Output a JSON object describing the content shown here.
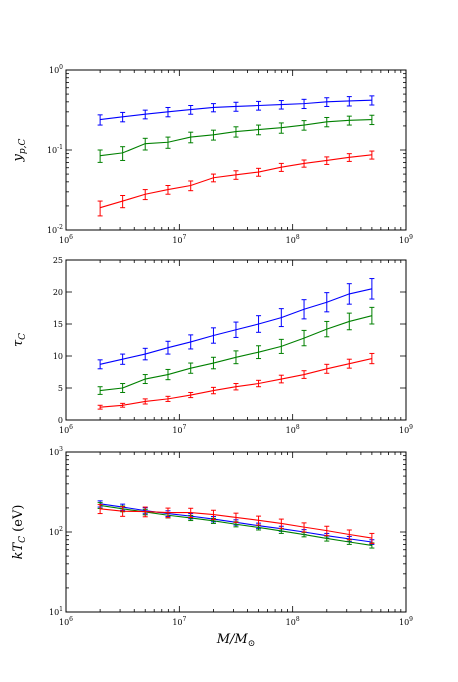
{
  "chart_data": [
    {
      "type": "line",
      "ylabel": "y_{p,C}",
      "yscale": "log",
      "xscale": "log",
      "xlim": [
        1000000,
        1000000000
      ],
      "ylim": [
        0.01,
        1
      ],
      "x": [
        2000000,
        3160000,
        5000000,
        7940000,
        12600000,
        20000000,
        31600000,
        50000000,
        79400000,
        126000000,
        200000000,
        316000000,
        500000000
      ],
      "series": [
        {
          "color": "#0000ff",
          "values": [
            0.24,
            0.26,
            0.28,
            0.3,
            0.32,
            0.34,
            0.35,
            0.36,
            0.37,
            0.38,
            0.4,
            0.41,
            0.42
          ],
          "err": [
            0.035,
            0.035,
            0.035,
            0.04,
            0.04,
            0.04,
            0.045,
            0.045,
            0.045,
            0.05,
            0.05,
            0.055,
            0.055
          ]
        },
        {
          "color": "#008000",
          "values": [
            0.085,
            0.092,
            0.12,
            0.125,
            0.145,
            0.155,
            0.17,
            0.18,
            0.19,
            0.205,
            0.225,
            0.235,
            0.24
          ],
          "err": [
            0.015,
            0.018,
            0.02,
            0.02,
            0.022,
            0.022,
            0.025,
            0.025,
            0.028,
            0.028,
            0.03,
            0.03,
            0.032
          ]
        },
        {
          "color": "#ff0000",
          "values": [
            0.019,
            0.023,
            0.028,
            0.032,
            0.036,
            0.045,
            0.049,
            0.053,
            0.061,
            0.068,
            0.074,
            0.081,
            0.087
          ],
          "err": [
            0.004,
            0.004,
            0.004,
            0.004,
            0.005,
            0.005,
            0.006,
            0.006,
            0.007,
            0.007,
            0.008,
            0.009,
            0.01
          ]
        }
      ],
      "ticks": {
        "x": [
          {
            "v": 1000000,
            "b": "10",
            "e": "6"
          },
          {
            "v": 10000000,
            "b": "10",
            "e": "7"
          },
          {
            "v": 100000000,
            "b": "10",
            "e": "8"
          },
          {
            "v": 1000000000,
            "b": "10",
            "e": "9"
          }
        ],
        "y": [
          {
            "v": 0.01,
            "b": "10",
            "e": "-2"
          },
          {
            "v": 0.1,
            "b": "10",
            "e": "-1"
          },
          {
            "v": 1,
            "b": "10",
            "e": "0"
          }
        ]
      }
    },
    {
      "type": "line",
      "ylabel": "τ_C",
      "yscale": "linear",
      "xscale": "log",
      "xlim": [
        1000000,
        1000000000
      ],
      "ylim": [
        0,
        25
      ],
      "x": [
        2000000,
        3160000,
        5000000,
        7940000,
        12600000,
        20000000,
        31600000,
        50000000,
        79400000,
        126000000,
        200000000,
        316000000,
        500000000
      ],
      "series": [
        {
          "color": "#0000ff",
          "values": [
            8.7,
            9.5,
            10.3,
            11.3,
            12.2,
            13.2,
            14.1,
            15.0,
            16.0,
            17.3,
            18.4,
            19.7,
            20.5
          ],
          "err": [
            0.7,
            0.8,
            0.9,
            1.0,
            1.1,
            1.2,
            1.2,
            1.3,
            1.4,
            1.5,
            1.5,
            1.6,
            1.6
          ]
        },
        {
          "color": "#008000",
          "values": [
            4.6,
            5.0,
            6.4,
            7.1,
            8.1,
            8.9,
            9.8,
            10.6,
            11.5,
            12.8,
            14.2,
            15.4,
            16.3
          ],
          "err": [
            0.6,
            0.7,
            0.7,
            0.8,
            0.8,
            0.9,
            1.0,
            1.0,
            1.1,
            1.2,
            1.2,
            1.3,
            1.3
          ]
        },
        {
          "color": "#ff0000",
          "values": [
            2.0,
            2.3,
            2.9,
            3.3,
            3.9,
            4.6,
            5.2,
            5.7,
            6.4,
            7.1,
            8.0,
            8.8,
            9.6
          ],
          "err": [
            0.3,
            0.3,
            0.4,
            0.4,
            0.4,
            0.5,
            0.5,
            0.5,
            0.6,
            0.6,
            0.7,
            0.7,
            0.8
          ]
        }
      ],
      "ticks": {
        "x": [
          {
            "v": 1000000,
            "b": "10",
            "e": "6"
          },
          {
            "v": 10000000,
            "b": "10",
            "e": "7"
          },
          {
            "v": 100000000,
            "b": "10",
            "e": "8"
          },
          {
            "v": 1000000000,
            "b": "10",
            "e": "9"
          }
        ],
        "y": [
          {
            "v": 0,
            "b": "0",
            "e": ""
          },
          {
            "v": 5,
            "b": "5",
            "e": ""
          },
          {
            "v": 10,
            "b": "10",
            "e": ""
          },
          {
            "v": 15,
            "b": "15",
            "e": ""
          },
          {
            "v": 20,
            "b": "20",
            "e": ""
          },
          {
            "v": 25,
            "b": "25",
            "e": ""
          }
        ]
      }
    },
    {
      "type": "line",
      "ylabel": "kT_C (eV)",
      "xlabel": "M/M_⊙",
      "yscale": "log",
      "xscale": "log",
      "xlim": [
        1000000,
        1000000000
      ],
      "ylim": [
        10,
        1000
      ],
      "x": [
        2000000,
        3160000,
        5000000,
        7940000,
        12600000,
        20000000,
        31600000,
        50000000,
        79400000,
        126000000,
        200000000,
        316000000,
        500000000
      ],
      "series": [
        {
          "color": "#0000ff",
          "values": [
            225,
            205,
            185,
            170,
            158,
            145,
            132,
            120,
            110,
            100,
            90,
            82,
            75
          ],
          "err": [
            20,
            18,
            16,
            14,
            12,
            11,
            10,
            9,
            8,
            7,
            6,
            6,
            5
          ]
        },
        {
          "color": "#008000",
          "values": [
            215,
            195,
            178,
            162,
            150,
            138,
            125,
            114,
            103,
            93,
            83,
            75,
            68
          ],
          "err": [
            18,
            16,
            14,
            12,
            11,
            10,
            9,
            8,
            7,
            6,
            6,
            5,
            5
          ]
        },
        {
          "color": "#ff0000",
          "values": [
            195,
            182,
            180,
            175,
            175,
            165,
            152,
            140,
            128,
            115,
            104,
            93,
            84
          ],
          "err": [
            25,
            25,
            25,
            24,
            23,
            22,
            20,
            18,
            17,
            15,
            14,
            13,
            12
          ]
        }
      ],
      "ticks": {
        "x": [
          {
            "v": 1000000,
            "b": "10",
            "e": "6"
          },
          {
            "v": 10000000,
            "b": "10",
            "e": "7"
          },
          {
            "v": 100000000,
            "b": "10",
            "e": "8"
          },
          {
            "v": 1000000000,
            "b": "10",
            "e": "9"
          }
        ],
        "y": [
          {
            "v": 10,
            "b": "10",
            "e": "1"
          },
          {
            "v": 100,
            "b": "10",
            "e": "2"
          },
          {
            "v": 1000,
            "b": "10",
            "e": "3"
          }
        ]
      }
    }
  ]
}
